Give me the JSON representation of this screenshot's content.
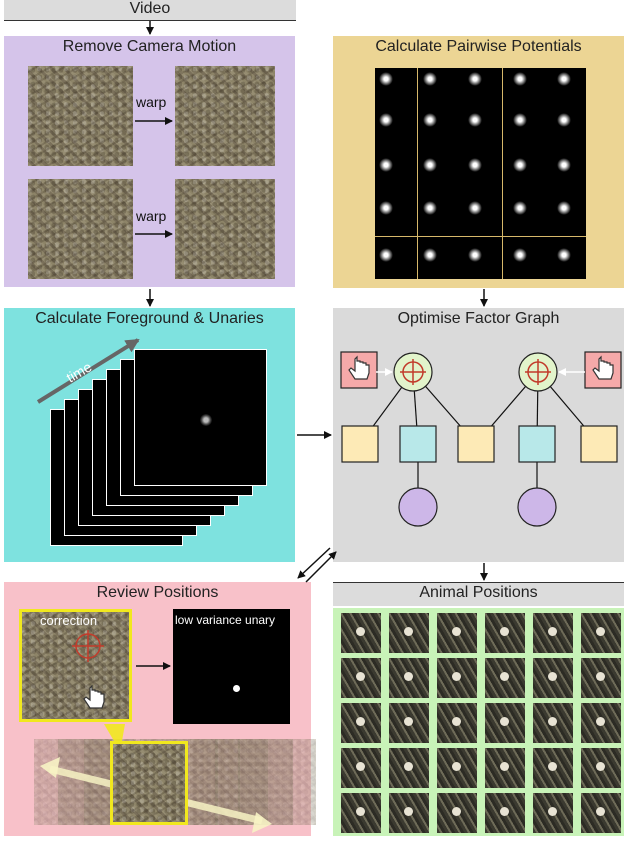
{
  "video": {
    "label": "Video"
  },
  "remove_motion": {
    "title": "Remove Camera Motion",
    "warp_label_1": "warp",
    "warp_label_2": "warp"
  },
  "pairwise": {
    "title": "Calculate Pairwise Potentials"
  },
  "foreground": {
    "title": "Calculate Foreground & Unaries",
    "time_label": "time"
  },
  "factor_graph": {
    "title": "Optimise Factor Graph"
  },
  "review": {
    "title": "Review  Positions",
    "correction_label": "correction",
    "unary_label": "low variance unary"
  },
  "animal_positions": {
    "title": "Animal Positions"
  },
  "colors": {
    "purple_panel": "#d5c4ea",
    "tan_panel": "#ecd594",
    "cyan_panel": "#7ee2df",
    "gray_panel": "#dadada",
    "pink_panel": "#f8c1c9",
    "green_panel": "#c8f3b8",
    "factor_node": "#fdeab6",
    "unary_node": "#b8e8e9",
    "variable_node": "#cdb7e8",
    "position_node": "#e2f4cb",
    "selection_yellow": "#f1e81e"
  }
}
